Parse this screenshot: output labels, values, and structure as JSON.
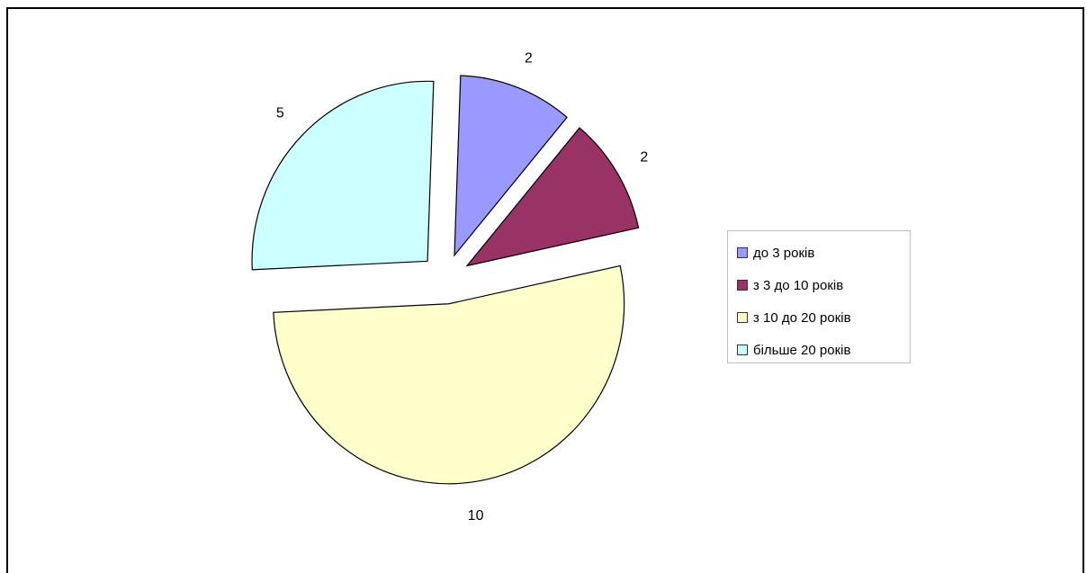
{
  "chart_data": {
    "type": "pie",
    "categories": [
      "до 3  років",
      "з 3 до 10 років",
      "з 10 до 20 років",
      "більше 20 років"
    ],
    "values": [
      2,
      2,
      10,
      5
    ],
    "data_labels": [
      "2",
      "2",
      "10",
      "5"
    ],
    "colors": [
      "#9999ff",
      "#993366",
      "#ffffcc",
      "#ccffff"
    ],
    "exploded": true,
    "legend_position": "right",
    "title": ""
  }
}
